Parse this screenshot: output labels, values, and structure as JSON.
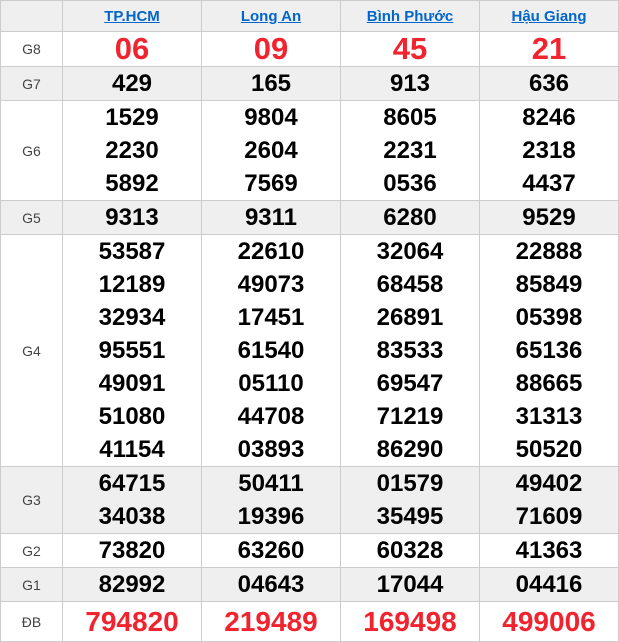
{
  "colors": {
    "header_link_blue": "#0066cc",
    "highlight_red": "#f1232e",
    "stripe_background": "#efefef",
    "border_gray": "#cccccc",
    "number_black": "#000000"
  },
  "table": {
    "columns": [
      "TP.HCM",
      "Long An",
      "Bình Phước",
      "Hậu Giang"
    ],
    "rows": [
      {
        "label": "G8",
        "highlight": true,
        "values": [
          [
            "06"
          ],
          [
            "09"
          ],
          [
            "45"
          ],
          [
            "21"
          ]
        ]
      },
      {
        "label": "G7",
        "highlight": false,
        "values": [
          [
            "429"
          ],
          [
            "165"
          ],
          [
            "913"
          ],
          [
            "636"
          ]
        ]
      },
      {
        "label": "G6",
        "highlight": false,
        "values": [
          [
            "1529",
            "2230",
            "5892"
          ],
          [
            "9804",
            "2604",
            "7569"
          ],
          [
            "8605",
            "2231",
            "0536"
          ],
          [
            "8246",
            "2318",
            "4437"
          ]
        ]
      },
      {
        "label": "G5",
        "highlight": false,
        "values": [
          [
            "9313"
          ],
          [
            "9311"
          ],
          [
            "6280"
          ],
          [
            "9529"
          ]
        ]
      },
      {
        "label": "G4",
        "highlight": false,
        "values": [
          [
            "53587",
            "12189",
            "32934",
            "95551",
            "49091",
            "51080",
            "41154"
          ],
          [
            "22610",
            "49073",
            "17451",
            "61540",
            "05110",
            "44708",
            "03893"
          ],
          [
            "32064",
            "68458",
            "26891",
            "83533",
            "69547",
            "71219",
            "86290"
          ],
          [
            "22888",
            "85849",
            "05398",
            "65136",
            "88665",
            "31313",
            "50520"
          ]
        ]
      },
      {
        "label": "G3",
        "highlight": false,
        "values": [
          [
            "64715",
            "34038"
          ],
          [
            "50411",
            "19396"
          ],
          [
            "01579",
            "35495"
          ],
          [
            "49402",
            "71609"
          ]
        ]
      },
      {
        "label": "G2",
        "highlight": false,
        "values": [
          [
            "73820"
          ],
          [
            "63260"
          ],
          [
            "60328"
          ],
          [
            "41363"
          ]
        ]
      },
      {
        "label": "G1",
        "highlight": false,
        "values": [
          [
            "82992"
          ],
          [
            "04643"
          ],
          [
            "17044"
          ],
          [
            "04416"
          ]
        ]
      },
      {
        "label": "ĐB",
        "highlight": true,
        "values": [
          [
            "794820"
          ],
          [
            "219489"
          ],
          [
            "169498"
          ],
          [
            "499006"
          ]
        ]
      }
    ]
  }
}
